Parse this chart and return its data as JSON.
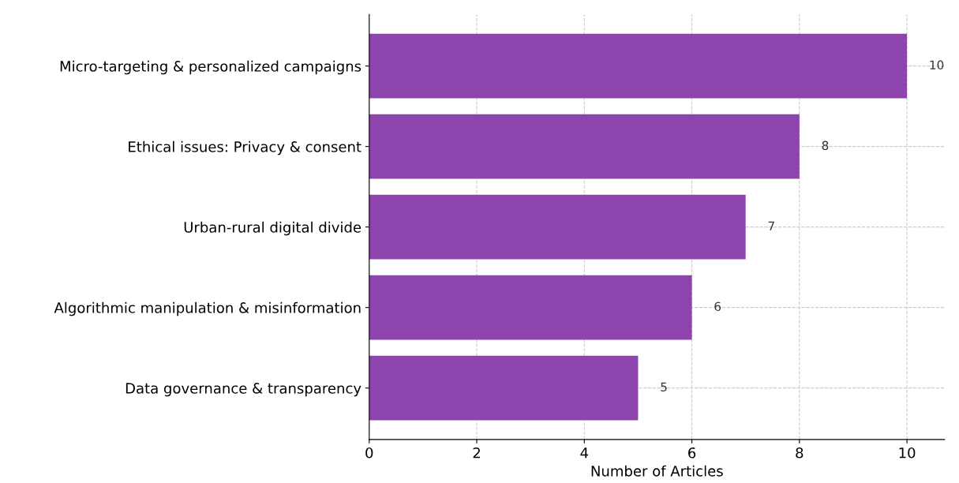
{
  "chart_data": {
    "type": "bar",
    "orientation": "horizontal",
    "xlabel": "Number of Articles",
    "categories": [
      "Micro-targeting & personalized campaigns",
      "Ethical issues: Privacy & consent",
      "Urban-rural digital divide",
      "Algorithmic manipulation & misinformation",
      "Data governance & transparency"
    ],
    "values": [
      10,
      8,
      7,
      6,
      5
    ],
    "color": "#8e44ad",
    "xlim": [
      0,
      10.7
    ],
    "xticks": [
      0,
      2,
      4,
      6,
      8,
      10
    ],
    "grid": true,
    "data_labels": true
  }
}
